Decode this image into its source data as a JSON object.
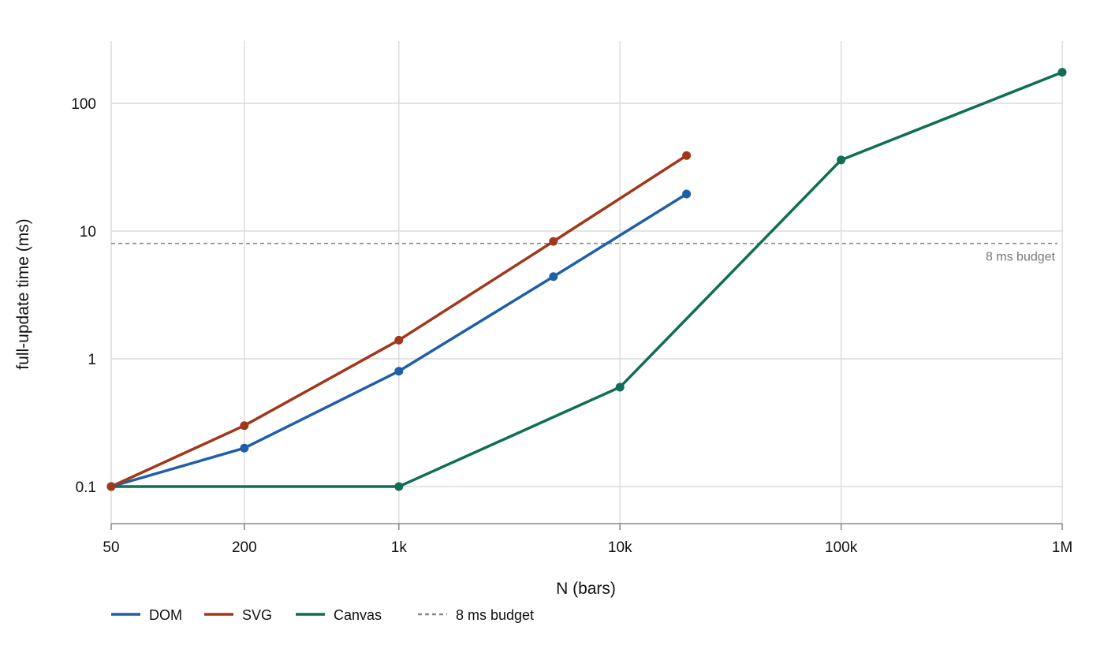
{
  "chart_data": {
    "type": "line",
    "xlabel": "N (bars)",
    "ylabel": "full-update time (ms)",
    "x_scale": "log",
    "y_scale": "log",
    "xlim": [
      50,
      1000000
    ],
    "ylim": [
      0.05,
      300
    ],
    "x_ticks": [
      {
        "value": 50,
        "label": "50"
      },
      {
        "value": 200,
        "label": "200"
      },
      {
        "value": 1000,
        "label": "1k"
      },
      {
        "value": 10000,
        "label": "10k"
      },
      {
        "value": 100000,
        "label": "100k"
      },
      {
        "value": 1000000,
        "label": "1M"
      }
    ],
    "y_ticks": [
      {
        "value": 0.1,
        "label": "0.1"
      },
      {
        "value": 1,
        "label": "1"
      },
      {
        "value": 10,
        "label": "10"
      },
      {
        "value": 100,
        "label": "100"
      }
    ],
    "grid": true,
    "legend_position": "bottom-left",
    "series": [
      {
        "name": "DOM",
        "color": "#1f5fa8",
        "points": [
          {
            "x": 50,
            "y": 0.1
          },
          {
            "x": 200,
            "y": 0.2
          },
          {
            "x": 1000,
            "y": 0.8
          },
          {
            "x": 5000,
            "y": 4.4
          },
          {
            "x": 20000,
            "y": 19.5
          }
        ]
      },
      {
        "name": "SVG",
        "color": "#a0381c",
        "points": [
          {
            "x": 50,
            "y": 0.1
          },
          {
            "x": 200,
            "y": 0.3
          },
          {
            "x": 1000,
            "y": 1.4
          },
          {
            "x": 5000,
            "y": 8.3
          },
          {
            "x": 20000,
            "y": 39
          }
        ]
      },
      {
        "name": "Canvas",
        "color": "#0f6e55",
        "points": [
          {
            "x": 50,
            "y": 0.1
          },
          {
            "x": 1000,
            "y": 0.1
          },
          {
            "x": 10000,
            "y": 0.6
          },
          {
            "x": 100000,
            "y": 36
          },
          {
            "x": 1000000,
            "y": 175
          }
        ]
      }
    ],
    "reference_line": {
      "y": 8,
      "label": "8 ms budget",
      "legend_label": "8 ms budget",
      "color": "#888888"
    }
  }
}
